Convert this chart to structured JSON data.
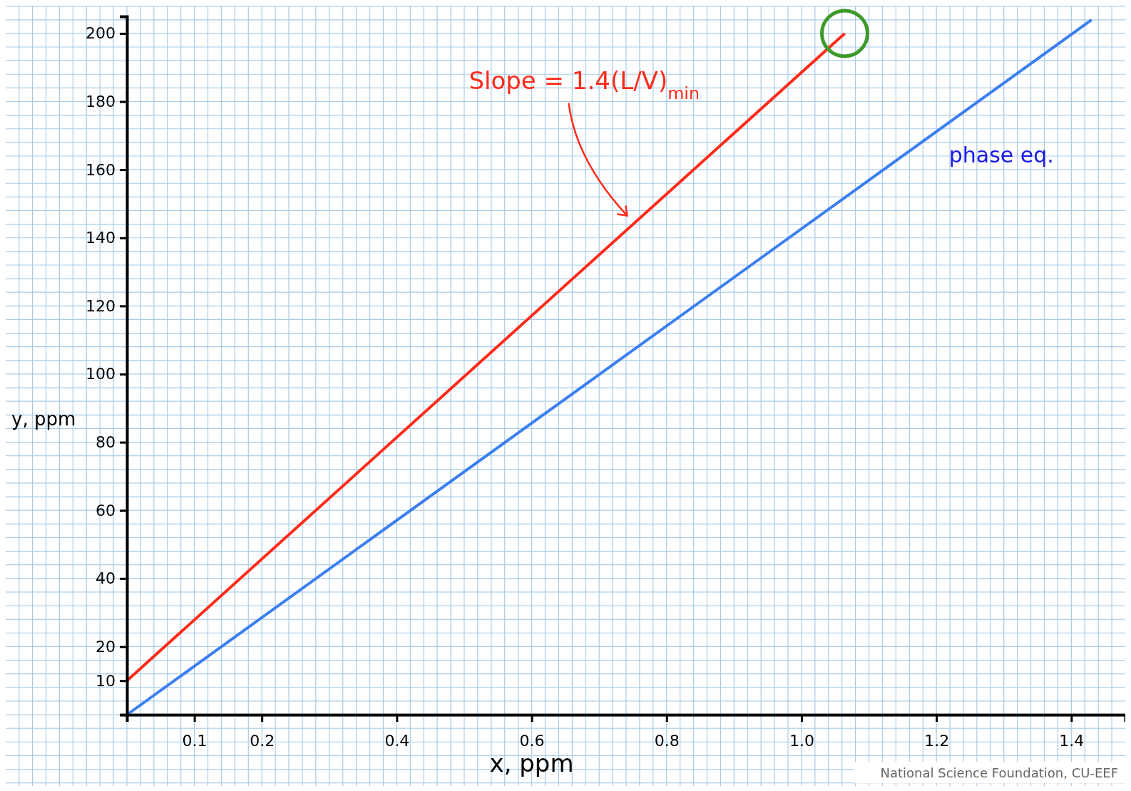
{
  "chart_data": {
    "type": "line",
    "xlabel": "x, ppm",
    "ylabel": "y, ppm",
    "xlim": [
      0,
      1.48
    ],
    "ylim": [
      0,
      205
    ],
    "xticks": [
      0.1,
      0.2,
      0.4,
      0.6,
      0.8,
      {
        "value": 1.0,
        "label": "1.0"
      },
      1.2,
      1.4
    ],
    "yticks": [
      10,
      20,
      40,
      60,
      80,
      100,
      120,
      140,
      160,
      180,
      200
    ],
    "grid": true,
    "series": [
      {
        "color": "#ff2a1a",
        "x": [
          0,
          1.064
        ],
        "values": [
          10,
          200
        ]
      },
      {
        "name": "phase eq.",
        "color": "#3b7ff0",
        "x": [
          0,
          1.43
        ],
        "values": [
          0,
          204
        ]
      }
    ],
    "annotations": [
      "Slope = 1.4(L/V)$_{min}$",
      "National Science Foundation, CU-EEF"
    ]
  }
}
